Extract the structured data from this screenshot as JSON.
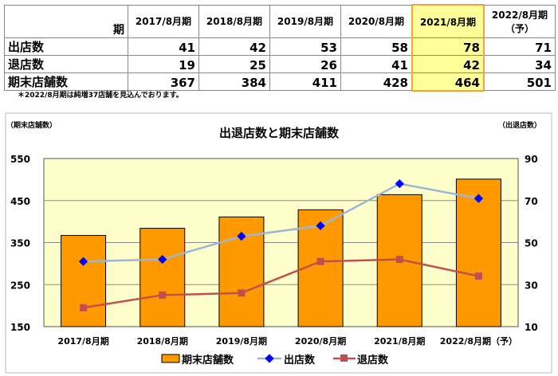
{
  "table": {
    "corner": "期",
    "columns": [
      "2017/8月期",
      "2018/8月期",
      "2019/8月期",
      "2020/8月期",
      "2021/8月期",
      "2022/8月期\n（予）"
    ],
    "highlight_index": 4,
    "rows": [
      {
        "label": "出店数",
        "values": [
          "41",
          "42",
          "53",
          "58",
          "78",
          "71"
        ]
      },
      {
        "label": "退店数",
        "values": [
          "19",
          "25",
          "26",
          "41",
          "42",
          "34"
        ]
      },
      {
        "label": "期末店舗数",
        "values": [
          "367",
          "384",
          "411",
          "428",
          "464",
          "501"
        ]
      }
    ],
    "note": "＊2022/8月期は純増37店舗を見込んでおります。"
  },
  "chart_data": {
    "type": "bar+line",
    "title": "出退店数と期末店舗数",
    "ylabel": "（期末店舗数）",
    "y2label": "（出退店数）",
    "categories": [
      "2017/8月期",
      "2018/8月期",
      "2019/8月期",
      "2020/8月期",
      "2021/8月期",
      "2022/8月期（予）"
    ],
    "ylim": [
      150,
      550
    ],
    "yticks": [
      "150",
      "250",
      "350",
      "450",
      "550"
    ],
    "y2lim": [
      10,
      90
    ],
    "y2ticks": [
      "10",
      "30",
      "50",
      "70",
      "90"
    ],
    "series": [
      {
        "name": "期末店舗数",
        "type": "bar",
        "axis": "left",
        "values": [
          367,
          384,
          411,
          428,
          464,
          501
        ],
        "color": "#ff9900"
      },
      {
        "name": "出店数",
        "type": "line",
        "axis": "right",
        "values": [
          41,
          42,
          53,
          58,
          78,
          71
        ],
        "color": "#9bb7d4",
        "marker_color": "#0000ff"
      },
      {
        "name": "退店数",
        "type": "line",
        "axis": "right",
        "values": [
          19,
          25,
          26,
          41,
          42,
          34
        ],
        "color": "#c0504d",
        "marker_color": "#c0504d"
      }
    ],
    "grid": true,
    "legend": "bottom"
  }
}
